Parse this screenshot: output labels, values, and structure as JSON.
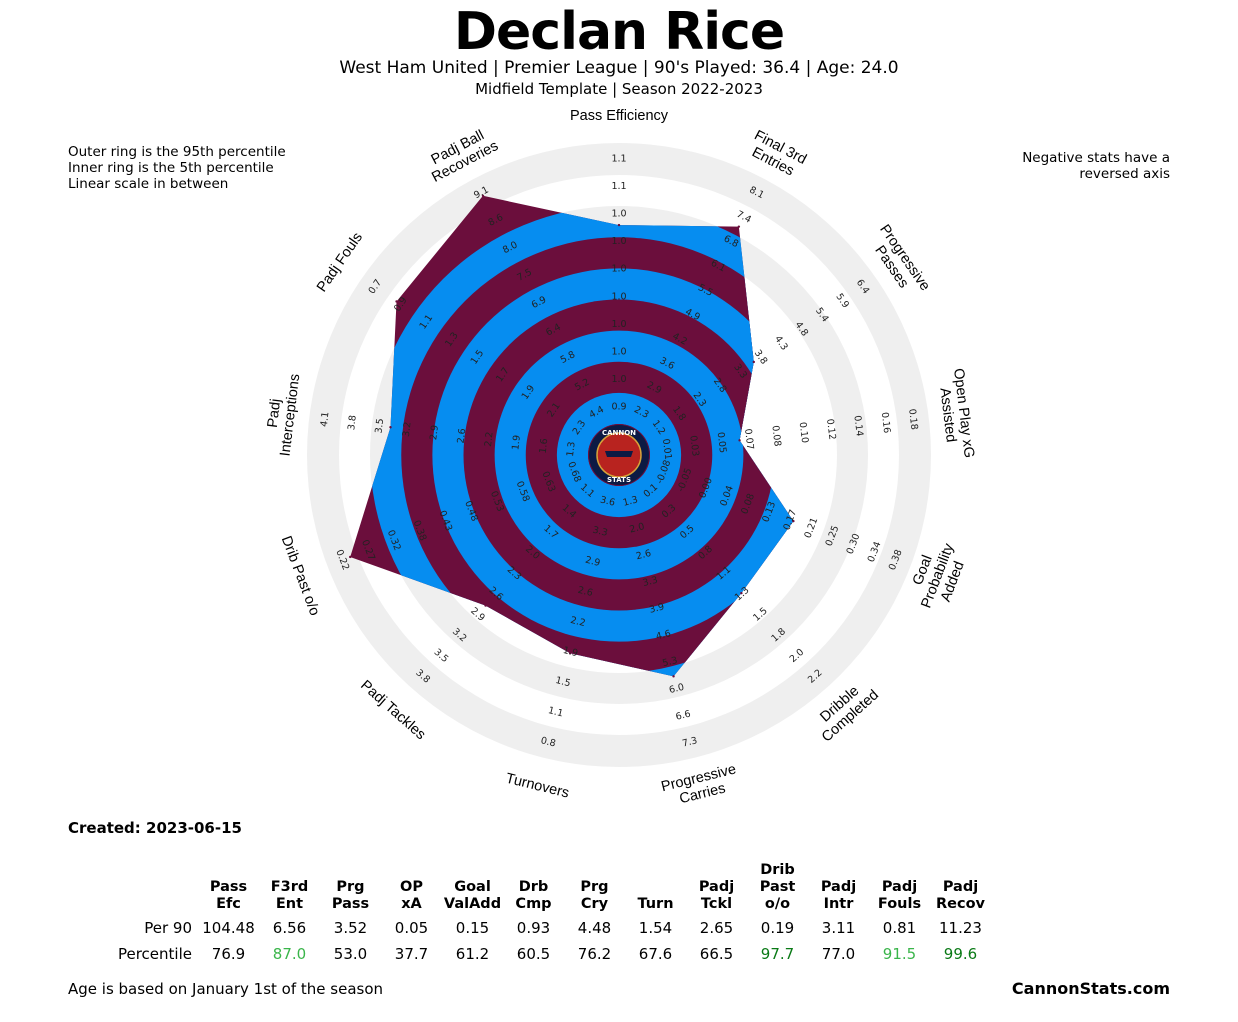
{
  "header": {
    "title": "Declan Rice",
    "subtitle_line1": "West Ham United  | Premier League | 90's Played: 36.4 | Age: 24.0",
    "subtitle_line2": "Midfield Template | Season 2022-2023"
  },
  "notes": {
    "left": "Outer ring is the 95th percentile\nInner ring is the 5th percentile\nLinear scale in between",
    "right": "Negative stats have a\nreversed axis"
  },
  "logo": {
    "line1": "CANNON",
    "line2": "STATS"
  },
  "colors": {
    "maroon": "#6b0e3c",
    "blue": "#068df0",
    "ring_grey": "#efefef",
    "green_light": "#3ab54a",
    "green_dark": "#0a7a16"
  },
  "chart_data": {
    "type": "radar",
    "center_percentile": 5,
    "outer_percentile": 95,
    "params": [
      {
        "label": "Pass Efficiency",
        "percentile": 76.9,
        "ticks": [
          "0.9",
          "1.0",
          "1.0",
          "1.0",
          "1.0",
          "1.0",
          "1.0",
          "1.0",
          "1.1",
          "1.1"
        ]
      },
      {
        "label": "Final 3rd\nEntries",
        "percentile": 87.0,
        "ticks": [
          "2.3",
          "2.9",
          "3.6",
          "4.2",
          "4.9",
          "5.5",
          "6.1",
          "6.8",
          "7.4",
          "8.1"
        ]
      },
      {
        "label": "Progressive\nPasses",
        "percentile": 53.0,
        "ticks": [
          "1.2",
          "1.8",
          "2.3",
          "2.8",
          "3.3",
          "3.8",
          "4.3",
          "4.8",
          "5.4",
          "5.9",
          "6.4"
        ]
      },
      {
        "label": "Open Play xG\nAssisted",
        "percentile": 37.7,
        "ticks": [
          "0.01",
          "0.03",
          "0.05",
          "0.07",
          "0.08",
          "0.10",
          "0.12",
          "0.14",
          "0.16",
          "0.18"
        ]
      },
      {
        "label": "Goal\nProbability\nAdded",
        "percentile": 61.2,
        "ticks": [
          "-0.08",
          "-0.05",
          "0.00",
          "0.04",
          "0.08",
          "0.13",
          "0.17",
          "0.21",
          "0.25",
          "0.30",
          "0.34",
          "0.38"
        ]
      },
      {
        "label": "Dribble\nCompleted",
        "percentile": 60.5,
        "ticks": [
          "0.1",
          "0.3",
          "0.5",
          "0.8",
          "1.1",
          "1.3",
          "1.5",
          "1.8",
          "2.0",
          "2.2"
        ]
      },
      {
        "label": "Progressive\nCarries",
        "percentile": 76.2,
        "ticks": [
          "1.3",
          "2.0",
          "2.6",
          "3.3",
          "3.9",
          "4.6",
          "5.3",
          "6.0",
          "6.6",
          "7.3"
        ]
      },
      {
        "label": "Turnovers",
        "percentile": 67.6,
        "ticks": [
          "3.6",
          "3.3",
          "2.9",
          "2.6",
          "2.2",
          "1.9",
          "1.5",
          "1.1",
          "0.8"
        ]
      },
      {
        "label": "Padj Tackles",
        "percentile": 66.5,
        "ticks": [
          "1.1",
          "1.4",
          "1.7",
          "2.0",
          "2.3",
          "2.6",
          "2.9",
          "3.2",
          "3.5",
          "3.8"
        ]
      },
      {
        "label": "Drib Past o/o",
        "percentile": 97.7,
        "ticks": [
          "0.68",
          "0.63",
          "0.58",
          "0.53",
          "0.48",
          "0.43",
          "0.38",
          "0.32",
          "0.27",
          "0.22"
        ]
      },
      {
        "label": "Padj\nInterceptions",
        "percentile": 77.0,
        "ticks": [
          "1.3",
          "1.6",
          "1.9",
          "2.2",
          "2.6",
          "2.9",
          "3.2",
          "3.5",
          "3.8",
          "4.1"
        ]
      },
      {
        "label": "Padj Fouls",
        "percentile": 91.5,
        "ticks": [
          "2.3",
          "2.1",
          "1.9",
          "1.7",
          "1.5",
          "1.3",
          "1.1",
          "0.9",
          "0.7"
        ]
      },
      {
        "label": "Padj Ball\nRecoveries",
        "percentile": 99.6,
        "ticks": [
          "4.4",
          "5.2",
          "5.8",
          "6.4",
          "6.9",
          "7.5",
          "8.0",
          "8.6",
          "9.1"
        ]
      }
    ]
  },
  "footer": {
    "created": "Created: 2023-06-15",
    "note": "Age is based on January 1st of the season",
    "site": "CannonStats.com"
  },
  "table": {
    "headers": [
      "Pass\nEfc",
      "F3rd\nEnt",
      "Prg\nPass",
      "OP\nxA",
      "Goal\nValAdd",
      "Drb\nCmp",
      "Prg\nCry",
      "Turn",
      "Padj\nTckl",
      "Drib\nPast o/o",
      "Padj\nIntr",
      "Padj\nFouls",
      "Padj\nRecov"
    ],
    "rows": [
      {
        "label": "Per 90",
        "values": [
          "104.48",
          "6.56",
          "3.52",
          "0.05",
          "0.15",
          "0.93",
          "4.48",
          "1.54",
          "2.65",
          "0.19",
          "3.11",
          "0.81",
          "11.23"
        ]
      },
      {
        "label": "Percentile",
        "values": [
          "76.9",
          "87.0",
          "53.0",
          "37.7",
          "61.2",
          "60.5",
          "76.2",
          "67.6",
          "66.5",
          "97.7",
          "77.0",
          "91.5",
          "99.6"
        ]
      }
    ]
  }
}
